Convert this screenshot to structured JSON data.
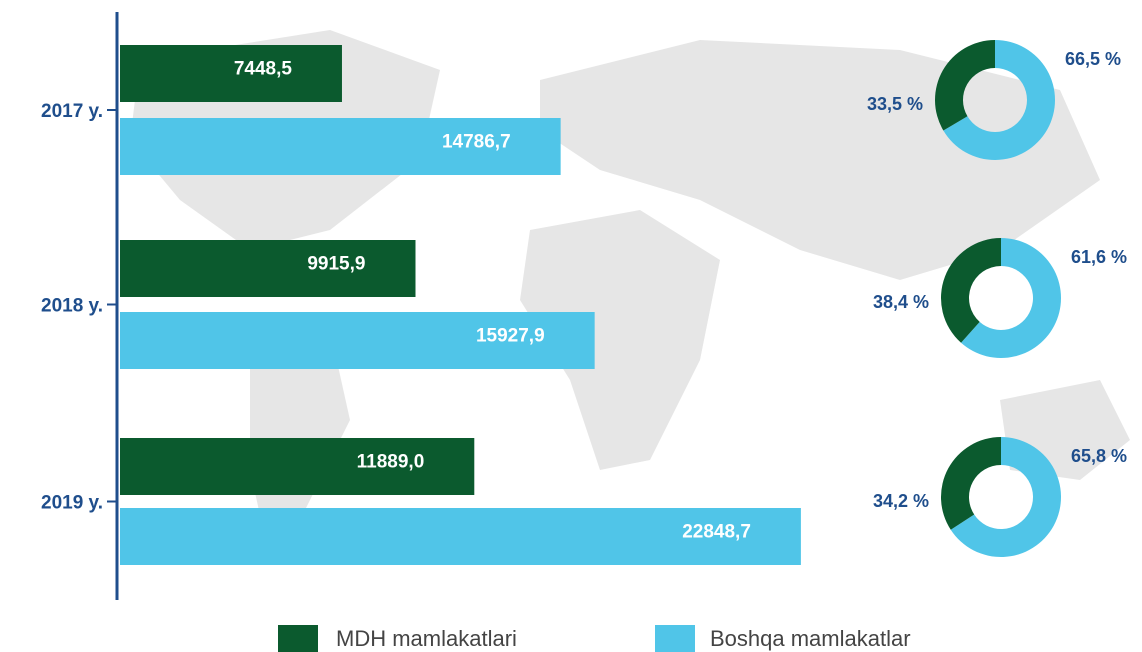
{
  "chart_data": [
    {
      "type": "bar",
      "orientation": "horizontal",
      "categories": [
        "2017 y.",
        "2018 y.",
        "2019 y."
      ],
      "series": [
        {
          "name": "MDH mamlakatlari",
          "color": "#0b5a2e",
          "values": [
            7448.5,
            9915.9,
            11889.0
          ],
          "value_labels": [
            "7448,5",
            "9915,9",
            "11889,0"
          ]
        },
        {
          "name": "Boshqa mamlakatlar",
          "color": "#50c5e8",
          "values": [
            14786.7,
            15927.9,
            22848.7
          ],
          "value_labels": [
            "14786,7",
            "15927,9",
            "22848,7"
          ]
        }
      ]
    },
    {
      "type": "pie",
      "donut": true,
      "values": [
        33.5,
        66.5
      ],
      "value_labels": [
        "33,5 %",
        "66,5 %"
      ],
      "colors": [
        "#0b5a2e",
        "#50c5e8"
      ]
    },
    {
      "type": "pie",
      "donut": true,
      "values": [
        38.4,
        61.6
      ],
      "value_labels": [
        "38,4 %",
        "61,6 %"
      ],
      "colors": [
        "#0b5a2e",
        "#50c5e8"
      ]
    },
    {
      "type": "pie",
      "donut": true,
      "values": [
        34.2,
        65.8
      ],
      "value_labels": [
        "34,2 %",
        "65,8 %"
      ],
      "colors": [
        "#0b5a2e",
        "#50c5e8"
      ]
    }
  ]
}
